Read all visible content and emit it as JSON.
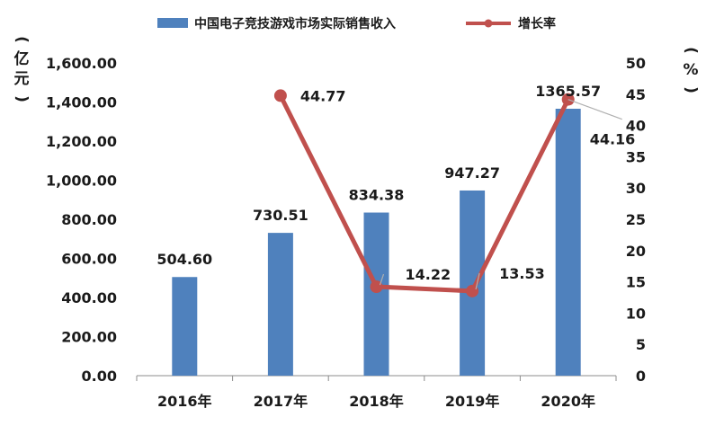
{
  "chart_data": {
    "type": "bar",
    "categories": [
      "2016年",
      "2017年",
      "2018年",
      "2019年",
      "2020年"
    ],
    "series": [
      {
        "name": "中国电子竞技游戏市场实际销售收入",
        "type": "bar",
        "axis": "left",
        "color": "#4F81BD",
        "values": [
          504.6,
          730.51,
          834.38,
          947.27,
          1365.57
        ],
        "labels": [
          "504.60",
          "730.51",
          "834.38",
          "947.27",
          "1365.57"
        ]
      },
      {
        "name": "增长率",
        "type": "line",
        "axis": "right",
        "color": "#C0504D",
        "values": [
          null,
          44.77,
          14.22,
          13.53,
          44.16
        ],
        "labels": [
          "",
          "44.77",
          "14.22",
          "13.53",
          "44.16"
        ]
      }
    ],
    "ylabel": "（亿元）",
    "y2label": "（%）",
    "ylim": [
      0,
      1600
    ],
    "y2lim": [
      0,
      50
    ],
    "yticks": [
      "0.00",
      "200.00",
      "400.00",
      "600.00",
      "800.00",
      "1,000.00",
      "1,200.00",
      "1,400.00",
      "1,600.00"
    ],
    "y2ticks": [
      "0",
      "5",
      "10",
      "15",
      "20",
      "25",
      "30",
      "35",
      "40",
      "45",
      "50"
    ],
    "grid": false,
    "legend_position": "top"
  }
}
